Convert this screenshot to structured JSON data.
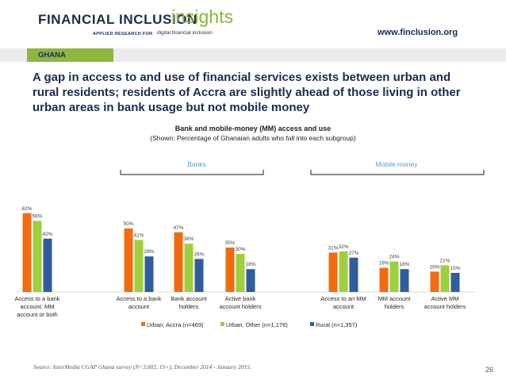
{
  "header": {
    "logo_main": "FINANCIAL INCLUSION",
    "logo_insights": "insights",
    "logo_tagline_a": "APPLIED RESEARCH FOR",
    "logo_tagline_b": "digital financial inclusion",
    "website": "www.finclusion.org"
  },
  "country": "GHANA",
  "headline": "A gap in access to and use of financial services exists between urban and rural residents; residents of Accra are slightly ahead of those living in other urban areas in bank usage but not mobile money",
  "source": "Source: InterMedia CGAP Ghana survey (N=3,002, 15+), December 2014 - January 2015.",
  "page_number": "26",
  "colors": {
    "urban_accra": "#f26b0e",
    "urban_other": "#9ecf3c",
    "rural": "#2f5d9e",
    "bracket": "#444444",
    "header_green": "#8fb63e"
  },
  "chart_data": {
    "type": "bar",
    "title": "Bank and mobile-money (MM) access and use",
    "subtitle": "(Shown: Percentage of Ghanaian adults who fall into each subgroup)",
    "group_labels": [
      {
        "label": "Banks",
        "categories": [
          "Access to a bank account",
          "Bank account holders",
          "Active bank account holders"
        ]
      },
      {
        "label": "Mobile money",
        "categories": [
          "Access to an MM account",
          "MM account holders",
          "Active MM account holders"
        ]
      }
    ],
    "categories": [
      [
        "Access to a bank",
        "account, MM",
        "account or both"
      ],
      [
        "Access to a bank",
        "account"
      ],
      [
        "Bank account",
        "holders"
      ],
      [
        "Active bank",
        "account holders"
      ],
      [
        "Access to an MM",
        "account"
      ],
      [
        "MM account",
        "holders"
      ],
      [
        "Active MM",
        "account holders"
      ]
    ],
    "series": [
      {
        "name": "Urban, Accra (n=469)",
        "values": [
          62,
          50,
          47,
          35,
          31,
          19,
          16
        ]
      },
      {
        "name": "Urban, Other (n=1,176)",
        "values": [
          56,
          41,
          38,
          30,
          32,
          24,
          21
        ]
      },
      {
        "name": "Rural (n=1,357)",
        "values": [
          42,
          28,
          26,
          18,
          27,
          18,
          15
        ]
      }
    ],
    "value_suffix": "%",
    "ylim": [
      0,
      70
    ],
    "grid": false,
    "legend_position": "bottom"
  }
}
